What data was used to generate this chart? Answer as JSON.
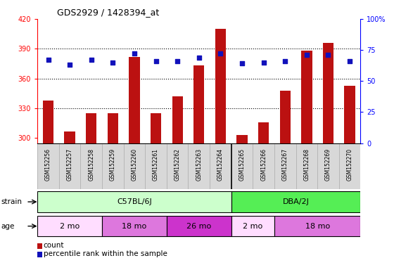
{
  "title": "GDS2929 / 1428394_at",
  "samples": [
    "GSM152256",
    "GSM152257",
    "GSM152258",
    "GSM152259",
    "GSM152260",
    "GSM152261",
    "GSM152262",
    "GSM152263",
    "GSM152264",
    "GSM152265",
    "GSM152266",
    "GSM152267",
    "GSM152268",
    "GSM152269",
    "GSM152270"
  ],
  "counts": [
    338,
    307,
    325,
    325,
    382,
    325,
    342,
    373,
    410,
    303,
    316,
    348,
    388,
    396,
    353
  ],
  "percentile_ranks": [
    67,
    63,
    67,
    65,
    72,
    66,
    66,
    69,
    72,
    64,
    65,
    66,
    71,
    71,
    66
  ],
  "ylim_left": [
    295,
    420
  ],
  "ylim_right": [
    0,
    100
  ],
  "yticks_left": [
    300,
    330,
    360,
    390,
    420
  ],
  "yticks_right": [
    0,
    25,
    50,
    75,
    100
  ],
  "bar_color": "#bb1111",
  "dot_color": "#1111bb",
  "strain_groups": [
    {
      "label": "C57BL/6J",
      "start": 0,
      "end": 8,
      "color": "#ccffcc"
    },
    {
      "label": "DBA/2J",
      "start": 9,
      "end": 14,
      "color": "#55ee55"
    }
  ],
  "age_groups": [
    {
      "label": "2 mo",
      "start": 0,
      "end": 2,
      "color": "#ffddff"
    },
    {
      "label": "18 mo",
      "start": 3,
      "end": 5,
      "color": "#ee88ee"
    },
    {
      "label": "26 mo",
      "start": 6,
      "end": 8,
      "color": "#dd44dd"
    },
    {
      "label": "2 mo",
      "start": 9,
      "end": 10,
      "color": "#ffddff"
    },
    {
      "label": "18 mo",
      "start": 11,
      "end": 14,
      "color": "#ee88ee"
    }
  ],
  "strain_label": "strain",
  "age_label": "age",
  "legend_count_label": "count",
  "legend_pct_label": "percentile rank within the sample",
  "plot_bg_color": "#ffffff",
  "n_samples": 15,
  "bar_width": 0.5
}
